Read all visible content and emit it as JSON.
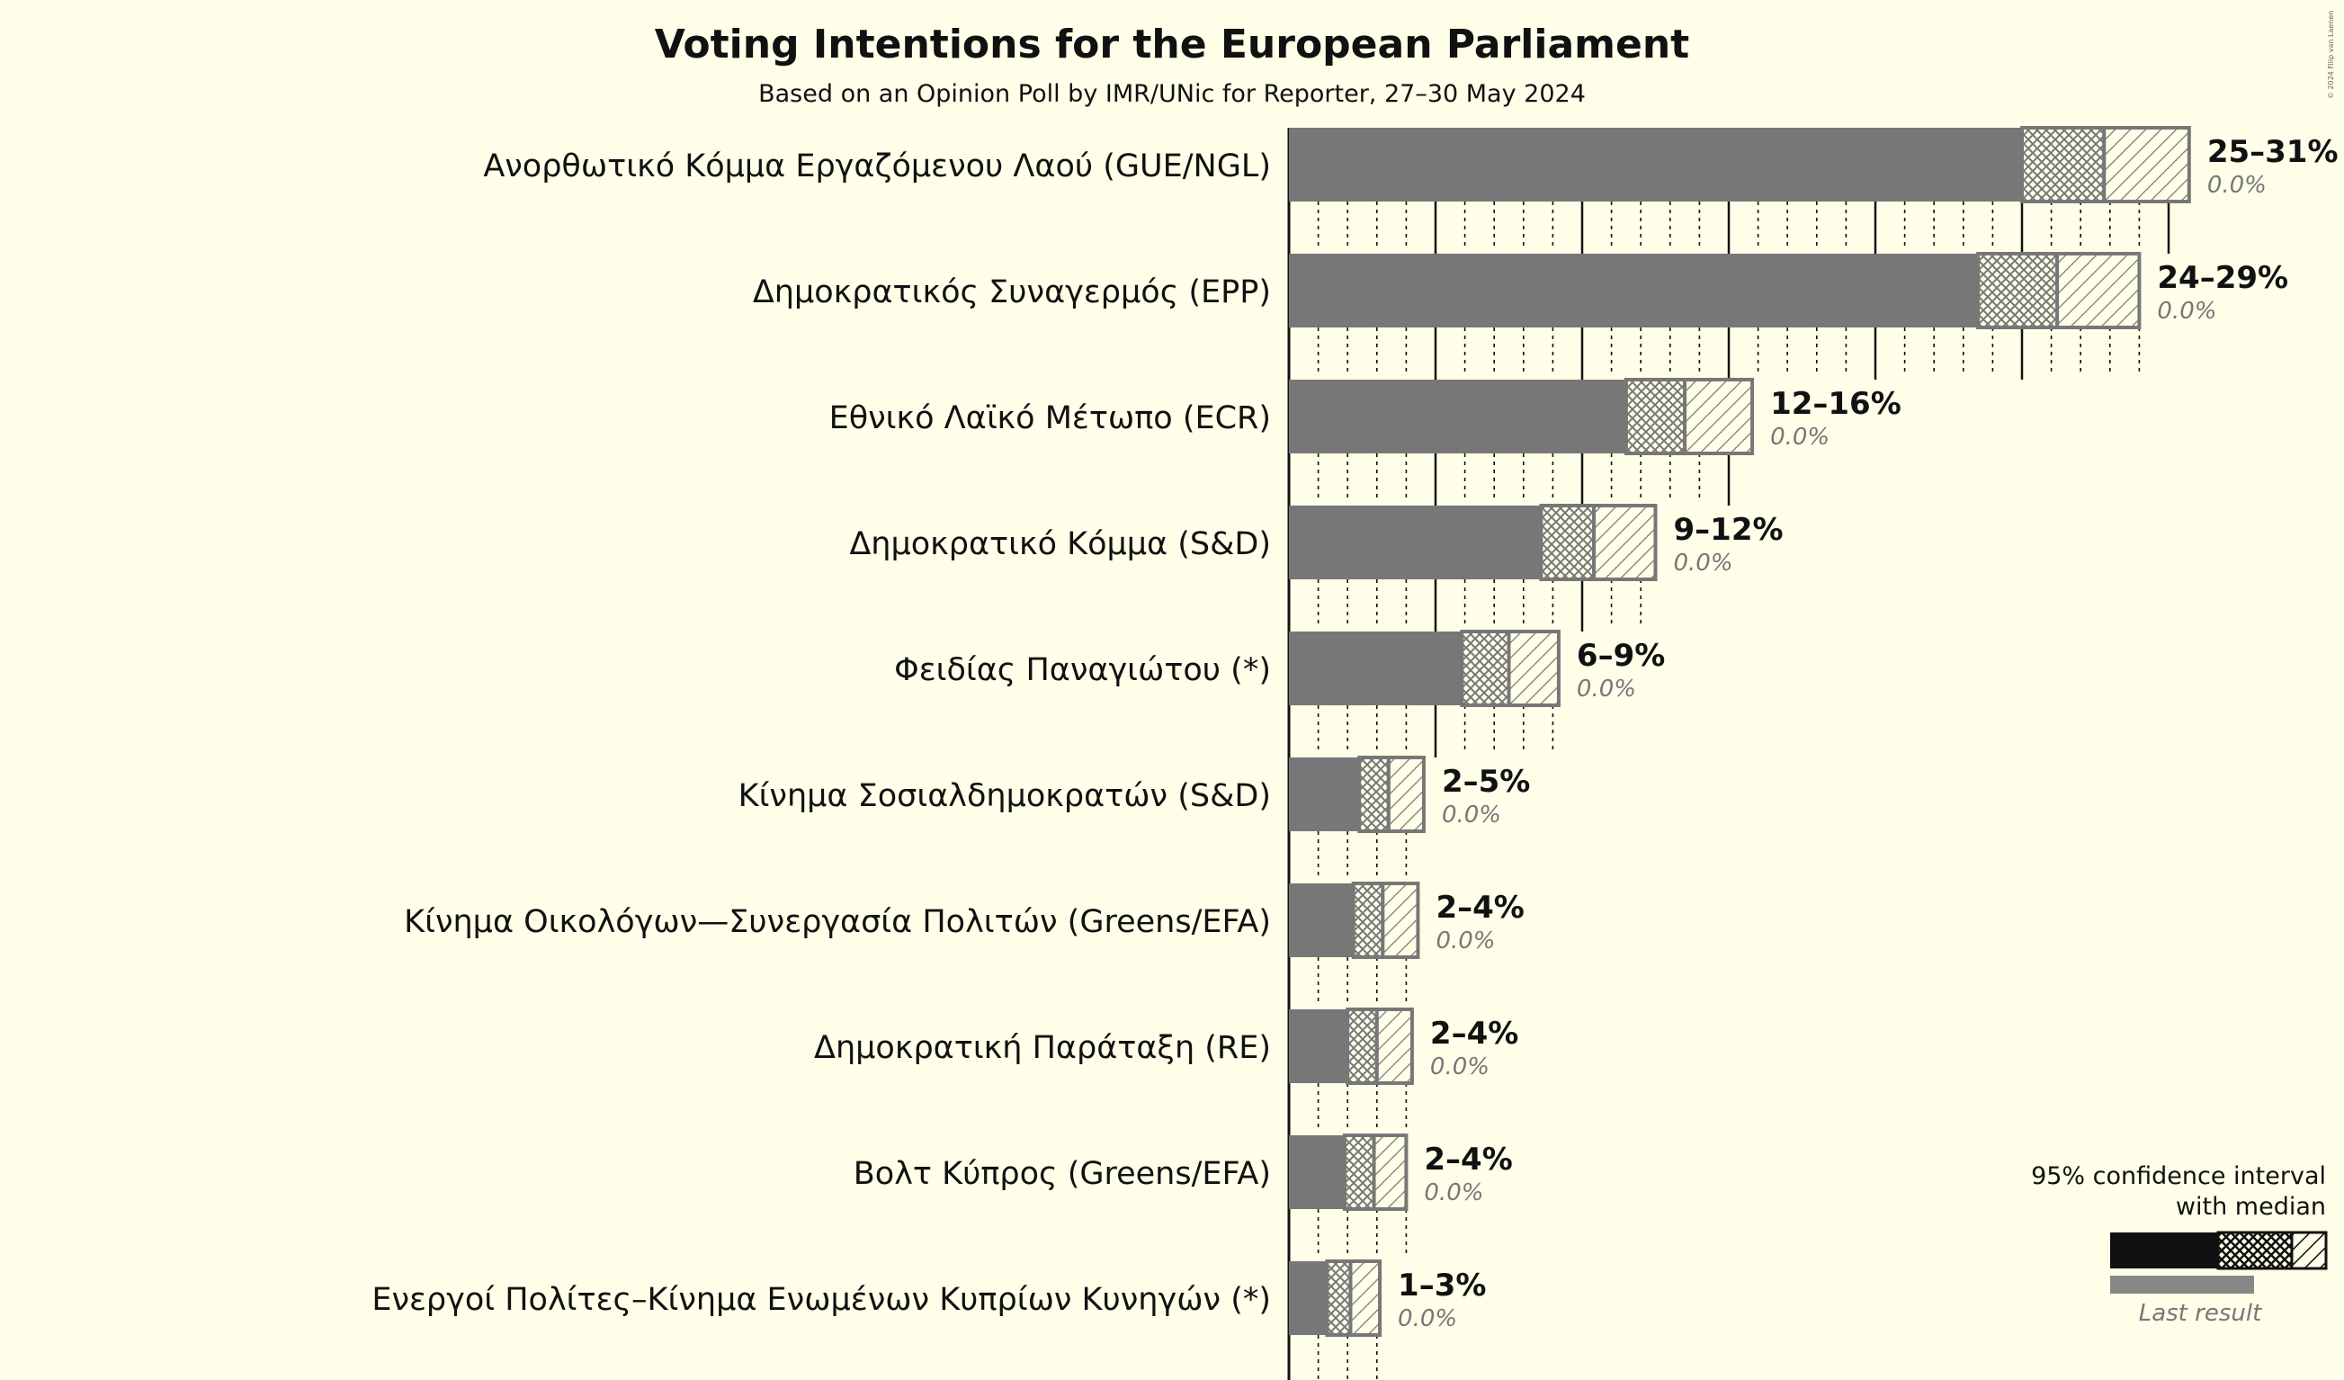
{
  "chart_data": {
    "type": "bar",
    "title": "Voting Intentions for the European Parliament",
    "subtitle": "Based on an Opinion Poll by IMR/UNic for Reporter, 27–30 May 2024",
    "copyright": "© 2024 Filip van Laenen",
    "xlim": [
      0,
      32
    ],
    "parties": [
      {
        "name": "Ανορθωτικό Κόμμα Εργαζόμενου Λαού (GUE/NGL)",
        "range": "25–31%",
        "last": "0.0%",
        "low": 25.0,
        "median": 27.8,
        "high": 30.7
      },
      {
        "name": "Δημοκρατικός Συναγερμός (EPP)",
        "range": "24–29%",
        "last": "0.0%",
        "low": 23.5,
        "median": 26.2,
        "high": 29.0
      },
      {
        "name": "Εθνικό Λαϊκό Μέτωπο (ECR)",
        "range": "12–16%",
        "last": "0.0%",
        "low": 11.5,
        "median": 13.5,
        "high": 15.8
      },
      {
        "name": "Δημοκρατικό Κόμμα (S&D)",
        "range": "9–12%",
        "last": "0.0%",
        "low": 8.6,
        "median": 10.4,
        "high": 12.5
      },
      {
        "name": "Φειδίας Παναγιώτου (*)",
        "range": "6–9%",
        "last": "0.0%",
        "low": 5.9,
        "median": 7.5,
        "high": 9.2
      },
      {
        "name": "Κίνημα Σοσιαλδημοκρατών (S&D)",
        "range": "2–5%",
        "last": "0.0%",
        "low": 2.4,
        "median": 3.4,
        "high": 4.6
      },
      {
        "name": "Κίνημα Οικολόγων—Συνεργασία Πολιτών (Greens/EFA)",
        "range": "2–4%",
        "last": "0.0%",
        "low": 2.2,
        "median": 3.2,
        "high": 4.4
      },
      {
        "name": "Δημοκρατική Παράταξη (RE)",
        "range": "2–4%",
        "last": "0.0%",
        "low": 2.0,
        "median": 3.0,
        "high": 4.2
      },
      {
        "name": "Βολτ Κύπρος (Greens/EFA)",
        "range": "2–4%",
        "last": "0.0%",
        "low": 1.9,
        "median": 2.9,
        "high": 4.0
      },
      {
        "name": "Ενεργοί Πολίτες–Κίνημα Ενωμένων Κυπρίων Κυνηγών (*)",
        "range": "1–3%",
        "last": "0.0%",
        "low": 1.3,
        "median": 2.1,
        "high": 3.1
      }
    ]
  },
  "legend": {
    "line1": "95% confidence interval",
    "line2": "with median",
    "last_result": "Last result"
  },
  "colors": {
    "background": "#FFFEE9",
    "bar": "#777777",
    "legend_bar": "#111111",
    "last_bar": "#888888",
    "text": "#111111",
    "muted": "#777777"
  }
}
